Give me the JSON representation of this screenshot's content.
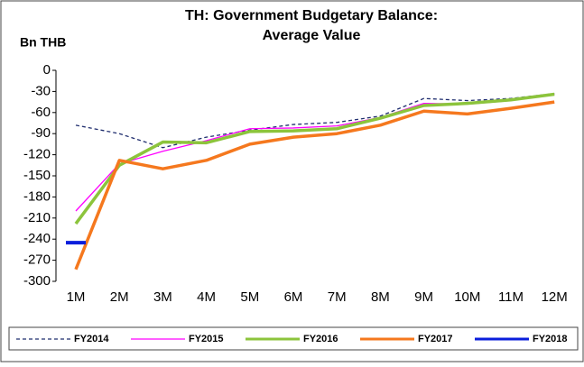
{
  "chart_data": {
    "type": "line",
    "title": "TH: Government Budgetary Balance:",
    "subtitle": "Average Value",
    "y_label": "Bn THB",
    "categories": [
      "1M",
      "2M",
      "3M",
      "4M",
      "5M",
      "6M",
      "7M",
      "8M",
      "9M",
      "10M",
      "11M",
      "12M"
    ],
    "ylim": [
      -300,
      0
    ],
    "yticks": [
      0,
      -30,
      -60,
      -90,
      -120,
      -150,
      -180,
      -210,
      -240,
      -270,
      -300
    ],
    "grid": false,
    "legend": "bottom",
    "series": [
      {
        "name": "FY2014",
        "color": "#1f2d6e",
        "dashed": true,
        "width": 1.3,
        "values": [
          -78,
          -90,
          -110,
          -95,
          -85,
          -77,
          -74,
          -65,
          -40,
          -43,
          -40,
          -33
        ]
      },
      {
        "name": "FY2015",
        "color": "#ff00ff",
        "dashed": false,
        "width": 1.3,
        "values": [
          -200,
          -133,
          -115,
          -100,
          -83,
          -82,
          -79,
          -67,
          -47,
          -48,
          -43,
          -34
        ]
      },
      {
        "name": "FY2016",
        "color": "#8cc43c",
        "dashed": false,
        "width": 3.5,
        "values": [
          -218,
          -135,
          -102,
          -103,
          -87,
          -86,
          -83,
          -68,
          -50,
          -47,
          -42,
          -34
        ]
      },
      {
        "name": "FY2017",
        "color": "#f5781e",
        "dashed": false,
        "width": 3.5,
        "values": [
          -283,
          -128,
          -140,
          -128,
          -105,
          -95,
          -90,
          -78,
          -58,
          -62,
          -54,
          -45
        ]
      },
      {
        "name": "FY2018",
        "color": "#0a1edc",
        "dashed": false,
        "width": 4,
        "values": [
          -245,
          null,
          null,
          null,
          null,
          null,
          null,
          null,
          null,
          null,
          null,
          null
        ]
      }
    ]
  }
}
